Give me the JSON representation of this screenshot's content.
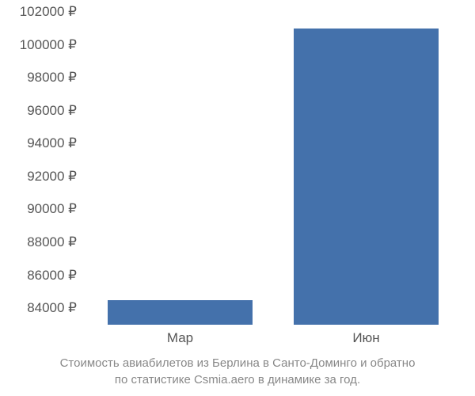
{
  "chart": {
    "type": "bar",
    "background_color": "#ffffff",
    "y_axis": {
      "min": 83000,
      "max": 102000,
      "ticks": [
        84000,
        86000,
        88000,
        90000,
        92000,
        94000,
        96000,
        98000,
        100000,
        102000
      ],
      "tick_labels": [
        "84000 ₽",
        "86000 ₽",
        "88000 ₽",
        "90000 ₽",
        "92000 ₽",
        "94000 ₽",
        "96000 ₽",
        "98000 ₽",
        "100000 ₽",
        "102000 ₽"
      ],
      "label_color": "#555555",
      "label_fontsize": 17
    },
    "x_axis": {
      "categories": [
        "Мар",
        "Июн"
      ],
      "label_color": "#555555",
      "label_fontsize": 17
    },
    "bars": [
      {
        "category": "Мар",
        "value": 84500,
        "color": "#4471ab"
      },
      {
        "category": "Июн",
        "value": 101000,
        "color": "#4471ab"
      }
    ],
    "bar_width_ratio": 0.78,
    "caption": {
      "line1": "Стоимость авиабилетов из Берлина в Санто-Доминго и обратно",
      "line2": "по статистике Csmia.aero в динамике за год.",
      "color": "#888888",
      "fontsize": 15
    }
  }
}
